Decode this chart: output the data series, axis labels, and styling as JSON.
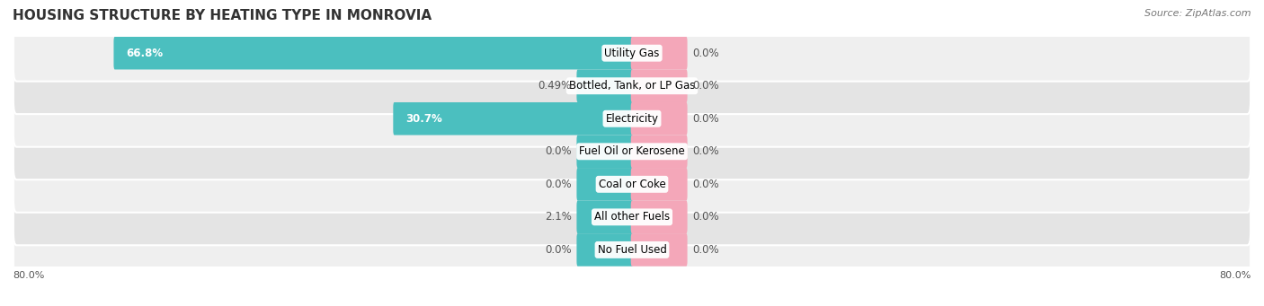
{
  "title": "HOUSING STRUCTURE BY HEATING TYPE IN MONROVIA",
  "source": "Source: ZipAtlas.com",
  "categories": [
    "Utility Gas",
    "Bottled, Tank, or LP Gas",
    "Electricity",
    "Fuel Oil or Kerosene",
    "Coal or Coke",
    "All other Fuels",
    "No Fuel Used"
  ],
  "owner_values": [
    66.8,
    0.49,
    30.7,
    0.0,
    0.0,
    2.1,
    0.0
  ],
  "renter_values": [
    0.0,
    0.0,
    0.0,
    0.0,
    0.0,
    0.0,
    0.0
  ],
  "owner_color": "#4BBFBF",
  "renter_color": "#F4A7B9",
  "row_bg_even": "#EFEFEF",
  "row_bg_odd": "#E4E4E4",
  "axis_max": 80.0,
  "axis_label_left": "80.0%",
  "axis_label_right": "80.0%",
  "label_font_size": 8.5,
  "title_font_size": 11,
  "source_font_size": 8,
  "min_bar_width": 7.0,
  "renter_placeholder": 7.0
}
